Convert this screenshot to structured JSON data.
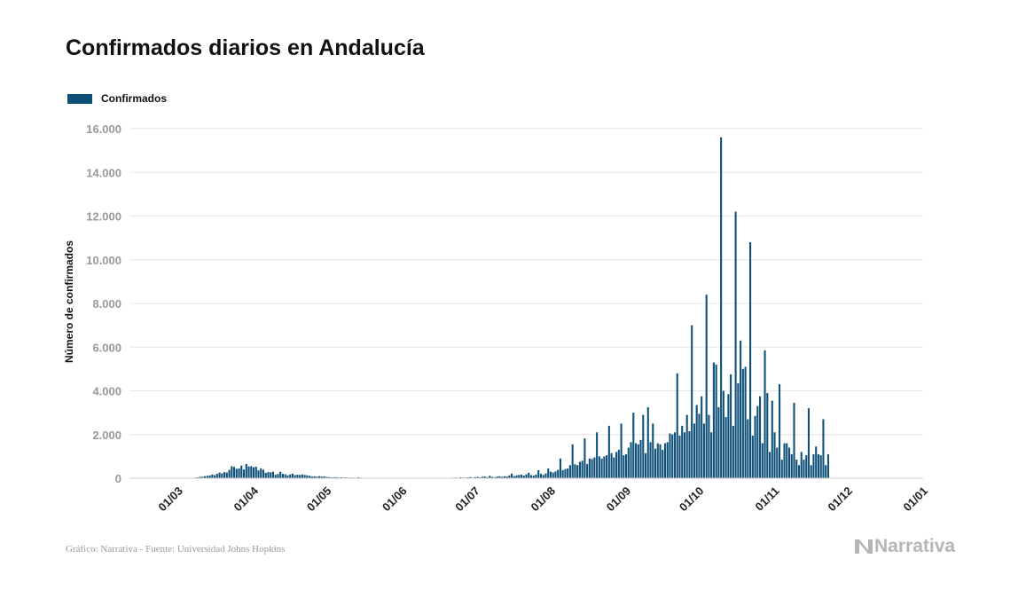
{
  "header": {
    "title": "Confirmados diarios en Andalucía"
  },
  "legend": {
    "label": "Confirmados",
    "color": "#0e5078"
  },
  "footer": {
    "source": "Gráfico: Narrativa - Fuente: Universidad Johns Hopkins",
    "brand": "Narrativa"
  },
  "chart_data": {
    "type": "bar",
    "title": "Confirmados diarios en Andalucía",
    "xlabel": "",
    "ylabel": "Número de confirmados",
    "ylim": [
      0,
      16000
    ],
    "yticks": [
      0,
      2000,
      4000,
      6000,
      8000,
      10000,
      12000,
      14000,
      16000
    ],
    "ytick_labels": [
      "0",
      "2.000",
      "4.000",
      "6.000",
      "8.000",
      "10.000",
      "12.000",
      "14.000",
      "16.000"
    ],
    "xlim": [
      "2020-02-10",
      "2021-01-01"
    ],
    "xtick_labels": [
      "01/03",
      "01/04",
      "01/05",
      "01/06",
      "01/07",
      "01/08",
      "01/09",
      "01/10",
      "01/11",
      "01/12",
      "01/01"
    ],
    "xtick_dates": [
      "2020-03-01",
      "2020-04-01",
      "2020-05-01",
      "2020-06-01",
      "2020-07-01",
      "2020-08-01",
      "2020-09-01",
      "2020-10-01",
      "2020-11-01",
      "2020-12-01",
      "2021-01-01"
    ],
    "grid": true,
    "legend_position": "top-left",
    "series": [
      {
        "name": "Confirmados",
        "color": "#0e5078",
        "start_date": "2020-02-26",
        "values": [
          0,
          2,
          0,
          3,
          1,
          6,
          4,
          5,
          10,
          18,
          20,
          28,
          40,
          60,
          70,
          95,
          110,
          130,
          170,
          140,
          200,
          260,
          220,
          280,
          260,
          380,
          550,
          520,
          430,
          450,
          580,
          400,
          650,
          540,
          550,
          500,
          530,
          360,
          450,
          390,
          250,
          280,
          270,
          300,
          160,
          190,
          300,
          200,
          180,
          130,
          170,
          210,
          140,
          160,
          150,
          170,
          150,
          130,
          110,
          80,
          90,
          70,
          90,
          70,
          80,
          60,
          50,
          40,
          40,
          50,
          30,
          40,
          30,
          35,
          25,
          30,
          25,
          20,
          40,
          25,
          20,
          15,
          18,
          12,
          20,
          10,
          15,
          12,
          10,
          12,
          15,
          10,
          10,
          8,
          10,
          8,
          5,
          6,
          8,
          5,
          5,
          8,
          10,
          8,
          5,
          5,
          6,
          8,
          10,
          6,
          6,
          8,
          10,
          12,
          10,
          15,
          20,
          25,
          30,
          20,
          40,
          30,
          25,
          40,
          55,
          30,
          50,
          60,
          40,
          70,
          80,
          50,
          110,
          60,
          40,
          80,
          90,
          60,
          90,
          80,
          130,
          210,
          100,
          130,
          150,
          160,
          120,
          180,
          250,
          140,
          120,
          170,
          370,
          200,
          150,
          220,
          450,
          300,
          260,
          310,
          380,
          900,
          370,
          420,
          450,
          600,
          1550,
          640,
          600,
          750,
          800,
          1820,
          650,
          900,
          880,
          950,
          2100,
          1000,
          900,
          1000,
          1050,
          2400,
          1150,
          950,
          1200,
          1300,
          2500,
          1050,
          1100,
          1400,
          1650,
          3000,
          1600,
          1550,
          1750,
          2900,
          1150,
          3250,
          1650,
          2500,
          1350,
          1600,
          1550,
          1300,
          1600,
          1650,
          2050,
          2000,
          2100,
          4800,
          1950,
          2400,
          2100,
          2900,
          2150,
          7000,
          2500,
          3350,
          2950,
          3750,
          2500,
          8400,
          2900,
          2100,
          5300,
          5200,
          3250,
          15600,
          4000,
          2800,
          3850,
          4750,
          2400,
          12200,
          4350,
          6300,
          5000,
          5100,
          2700,
          10800,
          1950,
          2850,
          3300,
          3750,
          1600,
          5850,
          3900,
          1200,
          3550,
          2100,
          1400,
          4300,
          850,
          1600,
          1600,
          1400,
          1100,
          3450,
          850,
          600,
          1200,
          850,
          1050,
          3200,
          600,
          1100,
          1450,
          1100,
          1050,
          2700,
          600,
          1100
        ]
      }
    ]
  }
}
